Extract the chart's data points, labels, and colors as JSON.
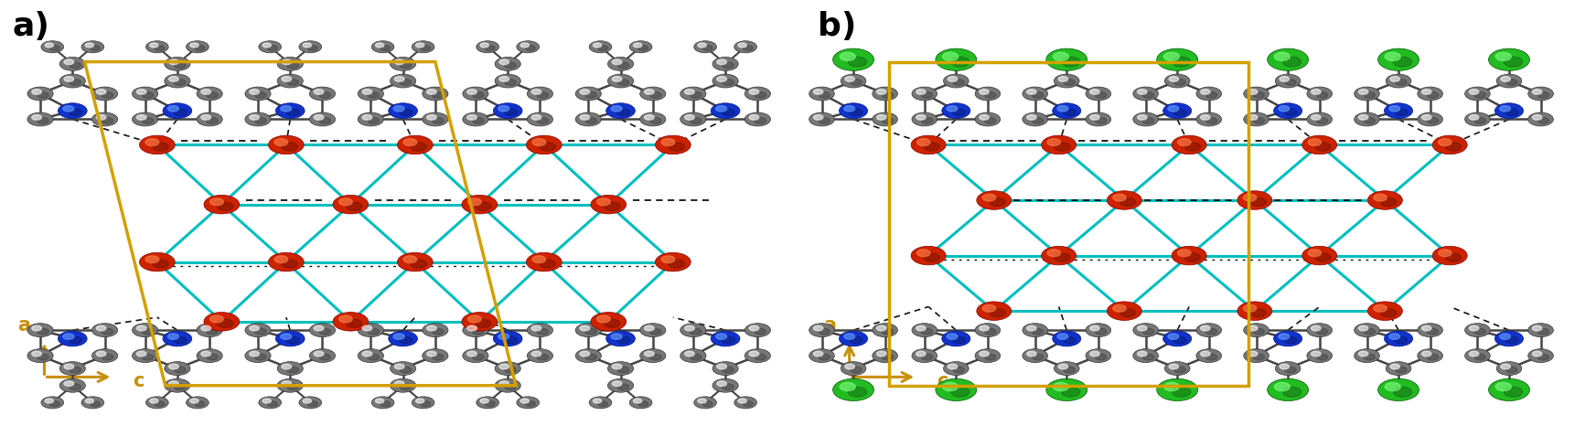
{
  "figure_width": 17.45,
  "figure_height": 4.66,
  "dpi": 100,
  "background_color": "#ffffff",
  "label_a": "a)",
  "label_b": "b)",
  "label_fontsize": 26,
  "label_fontweight": "bold",
  "label_color": "#000000",
  "axis_label_a": "a",
  "axis_label_c": "c",
  "axis_color": "#c8900a",
  "axis_fontsize": 15,
  "unit_cell_color": "#d4a000",
  "unit_cell_linewidth": 2.5,
  "cyan_bond_color": "#00bfbf",
  "red_atom_color": "#cc2200",
  "blue_atom_color": "#1133cc",
  "gray_atom_color": "#777777",
  "green_atom_color": "#22bb22",
  "black_atom_color": "#111111",
  "bond_gray_color": "#444444",
  "panel_split": 0.505
}
